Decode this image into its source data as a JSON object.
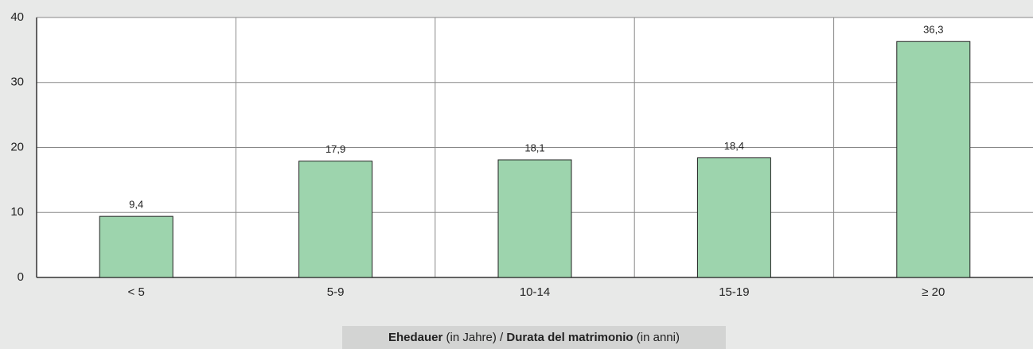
{
  "chart_data": {
    "type": "bar",
    "categories": [
      "< 5",
      "5-9",
      "10-14",
      "15-19",
      "≥ 20"
    ],
    "values": [
      9.4,
      17.9,
      18.1,
      18.4,
      36.3
    ],
    "value_labels": [
      "9,4",
      "17,9",
      "18,1",
      "18,4",
      "36,3"
    ],
    "color": "#9dd4ad",
    "ylim": [
      0,
      40
    ],
    "yticks": [
      0,
      10,
      20,
      30,
      40
    ],
    "grid": true,
    "x_label_parts": [
      "Ehedauer",
      "(in Jahre) /",
      "Durata del matrimonio",
      "(in anni)"
    ]
  }
}
